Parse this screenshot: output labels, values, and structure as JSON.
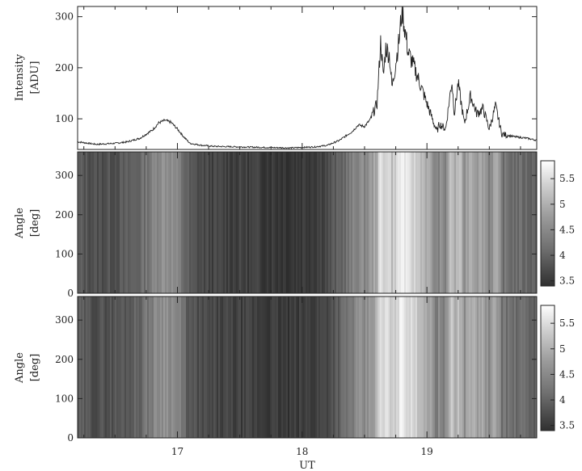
{
  "chart_data": [
    {
      "type": "line",
      "ylabel": "Intensity",
      "yunit": "[ADU]",
      "xlim": [
        16.2,
        19.88
      ],
      "ylim": [
        40,
        320
      ],
      "yticks": [
        100,
        200,
        300
      ],
      "x_ticks": [
        17,
        18,
        19
      ],
      "series": [
        {
          "x": [
            16.2,
            16.35,
            16.5,
            16.6,
            16.7,
            16.8,
            16.85,
            16.9,
            16.95,
            17.0,
            17.05,
            17.1,
            17.2,
            17.3,
            17.5,
            17.7,
            17.9,
            18.0,
            18.1,
            18.2,
            18.3,
            18.4,
            18.45,
            18.5,
            18.55,
            18.6,
            18.63,
            18.65,
            18.67,
            18.7,
            18.72,
            18.75,
            18.78,
            18.8,
            18.82,
            18.85,
            18.9,
            18.95,
            19.0,
            19.05,
            19.08,
            19.1,
            19.15,
            19.2,
            19.22,
            19.25,
            19.3,
            19.35,
            19.4,
            19.45,
            19.5,
            19.55,
            19.6,
            19.7,
            19.8,
            19.88
          ],
          "values": [
            55,
            50,
            52,
            55,
            62,
            78,
            92,
            97,
            93,
            80,
            65,
            52,
            48,
            46,
            45,
            44,
            43,
            44,
            45,
            48,
            58,
            75,
            88,
            85,
            100,
            130,
            255,
            180,
            240,
            225,
            160,
            210,
            260,
            318,
            280,
            230,
            200,
            165,
            130,
            95,
            75,
            90,
            80,
            175,
            110,
            170,
            90,
            145,
            110,
            120,
            80,
            125,
            70,
            65,
            62,
            58
          ]
        }
      ]
    },
    {
      "type": "heatmap",
      "ylabel": "Angle",
      "yunit": "[deg]",
      "xlim": [
        16.2,
        19.88
      ],
      "ylim": [
        0,
        360
      ],
      "yticks": [
        0,
        100,
        200,
        300
      ],
      "x_ticks": [
        17,
        18,
        19
      ],
      "colorbar": {
        "ticks": [
          3.5,
          4,
          4.5,
          5,
          5.5
        ],
        "labels": [
          "3.5",
          "4",
          "4.5",
          "5",
          "5.5"
        ],
        "range": [
          3.4,
          5.85
        ]
      }
    },
    {
      "type": "heatmap",
      "ylabel": "Angle",
      "yunit": "[deg]",
      "xlabel": "UT",
      "xlim": [
        16.2,
        19.88
      ],
      "ylim": [
        0,
        360
      ],
      "yticks": [
        0,
        100,
        200,
        300
      ],
      "x_ticks": [
        17,
        18,
        19
      ],
      "colorbar": {
        "ticks": [
          3.5,
          4,
          4.5,
          5,
          5.5
        ],
        "labels": [
          "3.5",
          "4",
          "4.5",
          "5",
          "5.5"
        ],
        "range": [
          3.4,
          5.85
        ]
      }
    }
  ]
}
